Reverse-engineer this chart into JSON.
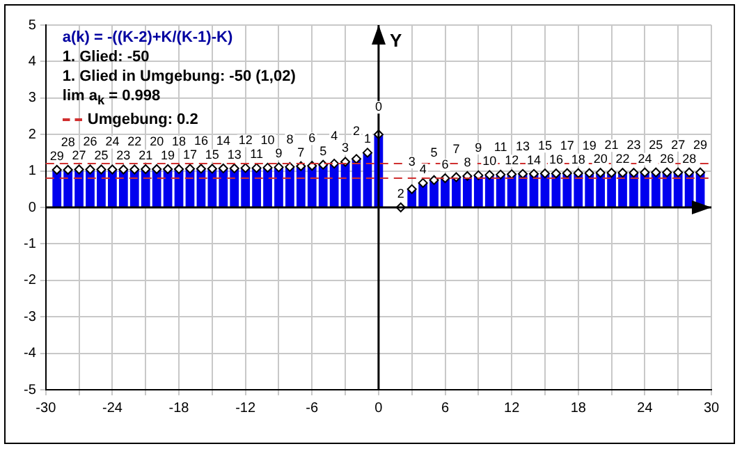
{
  "chart_data": {
    "type": "bar",
    "ylabel": "Y",
    "annotations": [
      "a(k) = -((K-2)+K/(K-1)-K)",
      "1. Glied: -50",
      "1. Glied in Umgebung: -50  (1,02)",
      "lim a$_{k}$ = 0.998",
      "Umgebung: 0.2",
      {
        "text": "29",
        "x": -29,
        "y": 1.03
      },
      {
        "text": "28",
        "x": -28,
        "y": 1.03
      },
      {
        "text": "27",
        "x": -27,
        "y": 1.04
      },
      {
        "text": "26",
        "x": -26,
        "y": 1.04
      },
      {
        "text": "25",
        "x": -25,
        "y": 1.04
      },
      {
        "text": "24",
        "x": -24,
        "y": 1.04
      },
      {
        "text": "23",
        "x": -23,
        "y": 1.04
      },
      {
        "text": "22",
        "x": -22,
        "y": 1.04
      },
      {
        "text": "21",
        "x": -21,
        "y": 1.05
      },
      {
        "text": "20",
        "x": -20,
        "y": 1.05
      },
      {
        "text": "19",
        "x": -19,
        "y": 1.05
      },
      {
        "text": "18",
        "x": -18,
        "y": 1.05
      },
      {
        "text": "17",
        "x": -17,
        "y": 1.06
      },
      {
        "text": "16",
        "x": -16,
        "y": 1.06
      },
      {
        "text": "15",
        "x": -15,
        "y": 1.06
      },
      {
        "text": "14",
        "x": -14,
        "y": 1.07
      },
      {
        "text": "13",
        "x": -13,
        "y": 1.07
      },
      {
        "text": "12",
        "x": -12,
        "y": 1.08
      },
      {
        "text": "11",
        "x": -11,
        "y": 1.08
      },
      {
        "text": "10",
        "x": -10,
        "y": 1.09
      },
      {
        "text": "9",
        "x": -9,
        "y": 1.1
      },
      {
        "text": "8",
        "x": -8,
        "y": 1.11
      },
      {
        "text": "7",
        "x": -7,
        "y": 1.13
      },
      {
        "text": "6",
        "x": -6,
        "y": 1.14
      },
      {
        "text": "5",
        "x": -5,
        "y": 1.17
      },
      {
        "text": "4",
        "x": -4,
        "y": 1.2
      },
      {
        "text": "3",
        "x": -3,
        "y": 1.25
      },
      {
        "text": "2",
        "x": -2,
        "y": 1.33
      },
      {
        "text": "1",
        "x": -1,
        "y": 1.5
      },
      {
        "text": "0",
        "x": 0,
        "y": 2
      },
      {
        "text": "2",
        "x": 2,
        "y": 0
      },
      {
        "text": "3",
        "x": 3,
        "y": 0.5
      },
      {
        "text": "4",
        "x": 4,
        "y": 0.67
      },
      {
        "text": "5",
        "x": 5,
        "y": 0.75
      },
      {
        "text": "6",
        "x": 6,
        "y": 0.8
      },
      {
        "text": "7",
        "x": 7,
        "y": 0.83
      },
      {
        "text": "8",
        "x": 8,
        "y": 0.86
      },
      {
        "text": "9",
        "x": 9,
        "y": 0.88
      },
      {
        "text": "10",
        "x": 10,
        "y": 0.89
      },
      {
        "text": "11",
        "x": 11,
        "y": 0.9
      },
      {
        "text": "12",
        "x": 12,
        "y": 0.91
      },
      {
        "text": "13",
        "x": 13,
        "y": 0.92
      },
      {
        "text": "14",
        "x": 14,
        "y": 0.92
      },
      {
        "text": "15",
        "x": 15,
        "y": 0.93
      },
      {
        "text": "16",
        "x": 16,
        "y": 0.93
      },
      {
        "text": "17",
        "x": 17,
        "y": 0.94
      },
      {
        "text": "18",
        "x": 18,
        "y": 0.94
      },
      {
        "text": "19",
        "x": 19,
        "y": 0.94
      },
      {
        "text": "20",
        "x": 20,
        "y": 0.95
      },
      {
        "text": "21",
        "x": 21,
        "y": 0.95
      },
      {
        "text": "22",
        "x": 22,
        "y": 0.95
      },
      {
        "text": "23",
        "x": 23,
        "y": 0.95
      },
      {
        "text": "24",
        "x": 24,
        "y": 0.96
      },
      {
        "text": "25",
        "x": 25,
        "y": 0.96
      },
      {
        "text": "26",
        "x": 26,
        "y": 0.96
      },
      {
        "text": "27",
        "x": 27,
        "y": 0.96
      },
      {
        "text": "28",
        "x": 28,
        "y": 0.96
      },
      {
        "text": "29",
        "x": 29,
        "y": 0.96
      }
    ],
    "x": [
      -29,
      -28,
      -27,
      -26,
      -25,
      -24,
      -23,
      -22,
      -21,
      -20,
      -19,
      -18,
      -17,
      -16,
      -15,
      -14,
      -13,
      -12,
      -11,
      -10,
      -9,
      -8,
      -7,
      -6,
      -5,
      -4,
      -3,
      -2,
      -1,
      0,
      2,
      3,
      4,
      5,
      6,
      7,
      8,
      9,
      10,
      11,
      12,
      13,
      14,
      15,
      16,
      17,
      18,
      19,
      20,
      21,
      22,
      23,
      24,
      25,
      26,
      27,
      28,
      29
    ],
    "series": [
      {
        "color": "#0000ee",
        "values": [
          1.03,
          1.03,
          1.04,
          1.04,
          1.04,
          1.04,
          1.04,
          1.04,
          1.05,
          1.05,
          1.05,
          1.05,
          1.06,
          1.06,
          1.06,
          1.07,
          1.07,
          1.08,
          1.08,
          1.09,
          1.1,
          1.11,
          1.13,
          1.14,
          1.17,
          1.2,
          1.25,
          1.33,
          1.5,
          2,
          0,
          0.5,
          0.67,
          0.75,
          0.8,
          0.83,
          0.86,
          0.88,
          0.89,
          0.9,
          0.91,
          0.92,
          0.92,
          0.93,
          0.93,
          0.94,
          0.94,
          0.94,
          0.95,
          0.95,
          0.95,
          0.95,
          0.96,
          0.96,
          0.96,
          0.96,
          0.96,
          0.96
        ]
      },
      {
        "type": "scatter",
        "color": "#ffffff",
        "values": [
          1.03,
          1.03,
          1.04,
          1.04,
          1.04,
          1.04,
          1.04,
          1.04,
          1.05,
          1.05,
          1.05,
          1.05,
          1.06,
          1.06,
          1.06,
          1.07,
          1.07,
          1.08,
          1.08,
          1.09,
          1.1,
          1.11,
          1.13,
          1.14,
          1.17,
          1.2,
          1.25,
          1.33,
          1.5,
          2,
          0,
          0.5,
          0.67,
          0.75,
          0.8,
          0.83,
          0.86,
          0.88,
          0.89,
          0.9,
          0.91,
          0.92,
          0.92,
          0.93,
          0.93,
          0.94,
          0.94,
          0.94,
          0.95,
          0.95,
          0.95,
          0.95,
          0.96,
          0.96,
          0.96,
          0.96,
          0.96,
          0.96
        ]
      }
    ],
    "xlim": [
      -30,
      30
    ],
    "xticks": [
      -30,
      {
        "value": -27,
        "label": null
      },
      -24,
      {
        "value": -21,
        "label": null
      },
      -18,
      {
        "value": -15,
        "label": null
      },
      -12,
      {
        "value": -9,
        "label": null
      },
      -6,
      {
        "value": -3,
        "label": null
      },
      0,
      {
        "value": 3,
        "label": null
      },
      6,
      {
        "value": 9,
        "label": null
      },
      12,
      {
        "value": 15,
        "label": null
      },
      18,
      {
        "value": 21,
        "label": null
      },
      24,
      {
        "value": 27,
        "label": null
      },
      30
    ],
    "ylim": [
      -5,
      5
    ],
    "yticks": [
      -5,
      -4,
      -3,
      -2,
      -1,
      0,
      1,
      2,
      3,
      4,
      5
    ],
    "ref_lines": [
      {
        "axis": "y",
        "value": 1.2,
        "color": "#d03030",
        "line_style": "dashed"
      },
      {
        "axis": "y",
        "value": 0.8,
        "color": "#d03030",
        "line_style": "dashed"
      }
    ],
    "grid": true,
    "legend": false,
    "marker": "diamond"
  }
}
